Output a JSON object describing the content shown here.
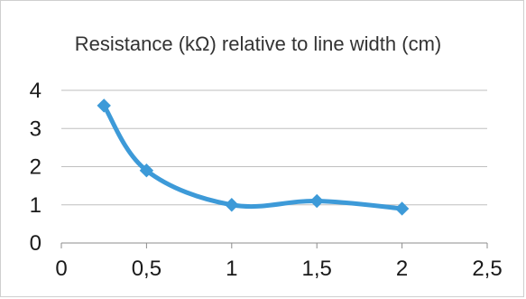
{
  "chart_data": {
    "type": "line",
    "title": "Resistance (kΩ) relative to line width (cm)",
    "xlabel": "",
    "ylabel": "",
    "x": [
      0.25,
      0.5,
      1,
      1.5,
      2
    ],
    "series": [
      {
        "values": [
          3.6,
          1.9,
          1.0,
          1.1,
          0.9
        ]
      }
    ],
    "xlim": [
      0,
      2.5
    ],
    "ylim": [
      0,
      4
    ],
    "x_ticks": [
      "0",
      "0,5",
      "1",
      "1,5",
      "2",
      "2,5"
    ],
    "y_ticks": [
      "0",
      "1",
      "2",
      "3",
      "4"
    ],
    "grid": "horizontal",
    "legend": "none",
    "colors": {
      "series": "#3d9ad8",
      "grid": "#bfbfbf",
      "axis": "#8c8c8c"
    },
    "marker": "diamond",
    "smooth": true
  }
}
